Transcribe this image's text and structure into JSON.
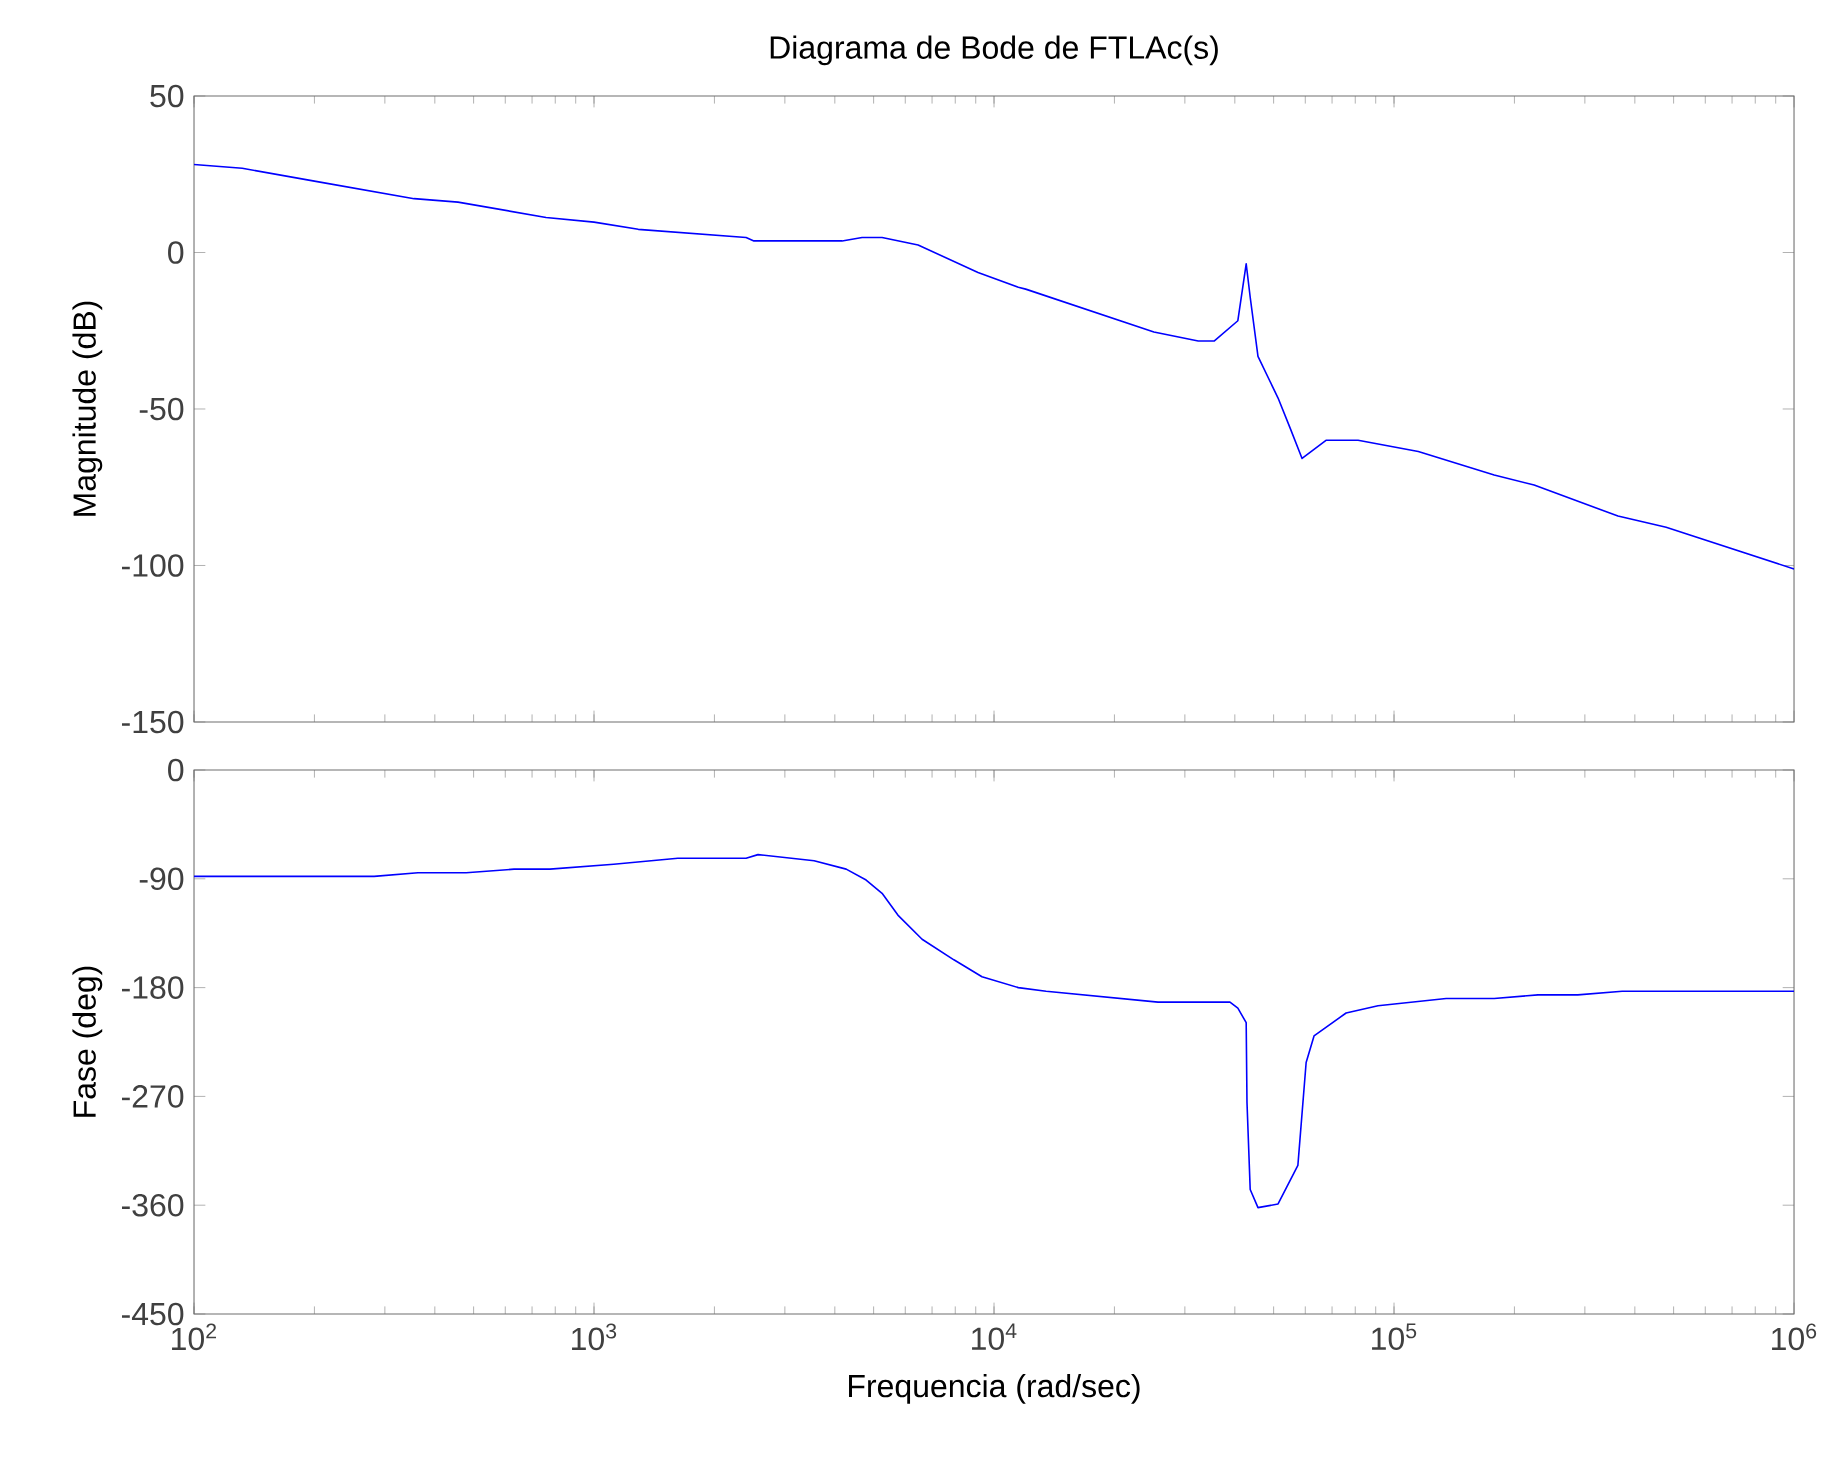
{
  "chart_data": [
    {
      "type": "line",
      "title": "Diagrama de Bode de FTLAc(s)",
      "ylabel": "Magnitude (dB)",
      "log": "x",
      "grid": false,
      "tick_labels": "y",
      "xlim": [
        100,
        1000000
      ],
      "xticks": [
        {
          "value": 100,
          "label": null
        },
        {
          "value": 1000,
          "label": null
        },
        {
          "value": 10000,
          "label": null
        },
        {
          "value": 100000,
          "label": null
        },
        {
          "value": 1000000,
          "label": null
        }
      ],
      "ylim": [
        -150,
        50
      ],
      "yticks": [
        50,
        0,
        -50,
        -100,
        -150
      ],
      "series": [
        {
          "color": "#0000ff",
          "x": [
            100,
            132,
            200,
            355,
            457,
            759,
            1000,
            1290,
            2400,
            2510,
            4170,
            4680,
            5250,
            6460,
            9120,
            11500,
            12000,
            25100,
            32400,
            35500,
            40700,
            42700,
            43700,
            45700,
            51300,
            55000,
            58900,
            67600,
            81300,
            115000,
            178000,
            224000,
            363000,
            479000,
            1000000
          ],
          "values": [
            28.1,
            26.9,
            22.8,
            17.2,
            16.1,
            11.2,
            9.7,
            7.4,
            4.8,
            3.7,
            3.7,
            4.8,
            4.8,
            2.4,
            -6.4,
            -11.1,
            -11.7,
            -25.4,
            -28.3,
            -28.3,
            -21.8,
            -3.6,
            -14.3,
            -33.2,
            -46.5,
            -56.1,
            -65.8,
            -60.0,
            -60.0,
            -63.6,
            -71.1,
            -74.3,
            -84.2,
            -87.8,
            -101.1
          ]
        }
      ]
    },
    {
      "type": "line",
      "xlabel": "Frequencia  (rad/sec)",
      "ylabel": "Fase (deg)",
      "log": "x",
      "grid": false,
      "xlim": [
        100,
        1000000
      ],
      "xticks": [
        {
          "value": 100,
          "label": "10$^{2}$"
        },
        {
          "value": 1000,
          "label": "10$^{3}$"
        },
        {
          "value": 10000,
          "label": "10$^{4}$"
        },
        {
          "value": 100000,
          "label": "10$^{5}$"
        },
        {
          "value": 1000000,
          "label": "10$^{6}$"
        }
      ],
      "ylim": [
        -450,
        0
      ],
      "yticks": [
        0,
        -90,
        -180,
        -270,
        -360,
        -450
      ],
      "series": [
        {
          "color": "#0000ff",
          "x": [
            100,
            282,
            363,
            479,
            631,
            776,
            1120,
            1620,
            2400,
            2570,
            3550,
            4270,
            4790,
            5250,
            5750,
            6610,
            7940,
            9330,
            11500,
            13500,
            25700,
            38900,
            40700,
            42700,
            42900,
            43700,
            45700,
            51300,
            57500,
            60300,
            63100,
            75900,
            91200,
            135000,
            178000,
            229000,
            288000,
            372000,
            1000000
          ],
          "values": [
            -88,
            -88,
            -85,
            -85,
            -82,
            -82,
            -78,
            -73,
            -73,
            -70,
            -75,
            -82,
            -91,
            -102,
            -120,
            -140,
            -157,
            -171,
            -180,
            -183,
            -192,
            -192,
            -197,
            -209,
            -275,
            -347,
            -362,
            -359,
            -327,
            -242,
            -220,
            -201,
            -195,
            -189,
            -189,
            -186,
            -186,
            -183,
            -183
          ]
        }
      ]
    }
  ]
}
